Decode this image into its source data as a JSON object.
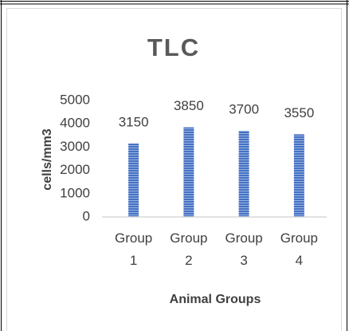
{
  "chart_data": {
    "type": "bar",
    "title": "TLC",
    "y_label": "cells/mm3",
    "x_label": "Animal Groups",
    "categories": [
      "Group 1",
      "Group 2",
      "Group 3",
      "Group 4"
    ],
    "values": [
      3150,
      3850,
      3700,
      3550
    ],
    "color": "#4472c4",
    "ylim": [
      0,
      5000
    ],
    "yticks": [
      0,
      1000,
      2000,
      3000,
      4000,
      5000
    ],
    "grid": false
  }
}
